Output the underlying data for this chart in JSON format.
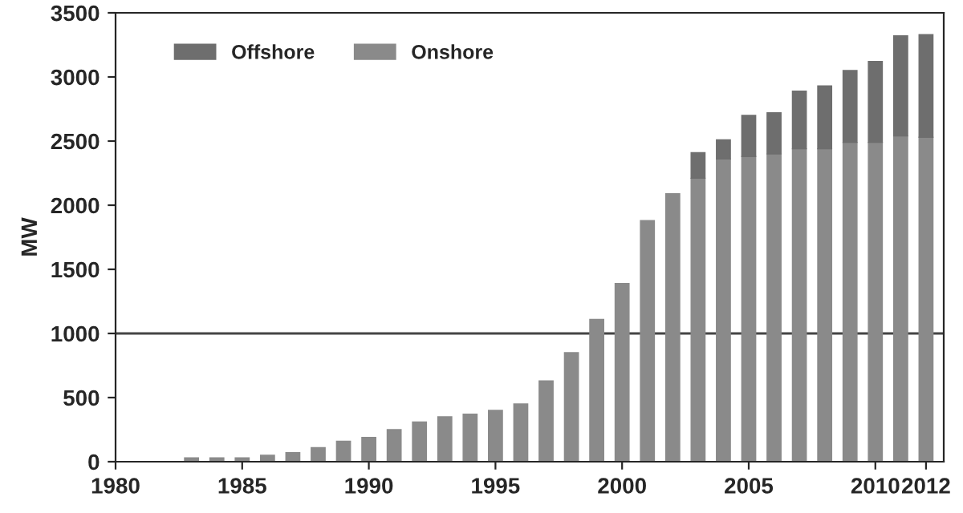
{
  "chart_data": {
    "type": "bar",
    "stacked": true,
    "ylabel": "MW",
    "x": [
      1983,
      1984,
      1985,
      1986,
      1987,
      1988,
      1989,
      1990,
      1991,
      1992,
      1993,
      1994,
      1995,
      1996,
      1997,
      1998,
      1999,
      2000,
      2001,
      2002,
      2003,
      2004,
      2005,
      2006,
      2007,
      2008,
      2009,
      2010,
      2011,
      2012
    ],
    "series": [
      {
        "name": "Onshore",
        "color": "#8a8a8a",
        "values": [
          30,
          30,
          30,
          50,
          70,
          110,
          160,
          190,
          250,
          310,
          350,
          370,
          400,
          450,
          630,
          850,
          1110,
          1390,
          1880,
          2090,
          2210,
          2360,
          2380,
          2400,
          2440,
          2440,
          2490,
          2490,
          2540,
          2530
        ]
      },
      {
        "name": "Offshore",
        "color": "#6e6e6e",
        "values": [
          null,
          null,
          null,
          null,
          null,
          null,
          null,
          null,
          null,
          null,
          null,
          null,
          null,
          null,
          null,
          null,
          null,
          null,
          null,
          null,
          200,
          150,
          320,
          320,
          450,
          490,
          560,
          630,
          780,
          800
        ]
      }
    ],
    "legend": "top left",
    "xlim": [
      1980,
      2012.7
    ],
    "xticks": [
      1980,
      1985,
      1990,
      1995,
      2000,
      2005,
      2010,
      2012
    ],
    "ylim": [
      0,
      3500
    ],
    "yticks": [
      0,
      500,
      1000,
      1500,
      2000,
      2500,
      3000,
      3500
    ],
    "ref_lines": [
      {
        "axis": "y",
        "value": 1000,
        "color": "#444444"
      }
    ],
    "grid": false
  }
}
